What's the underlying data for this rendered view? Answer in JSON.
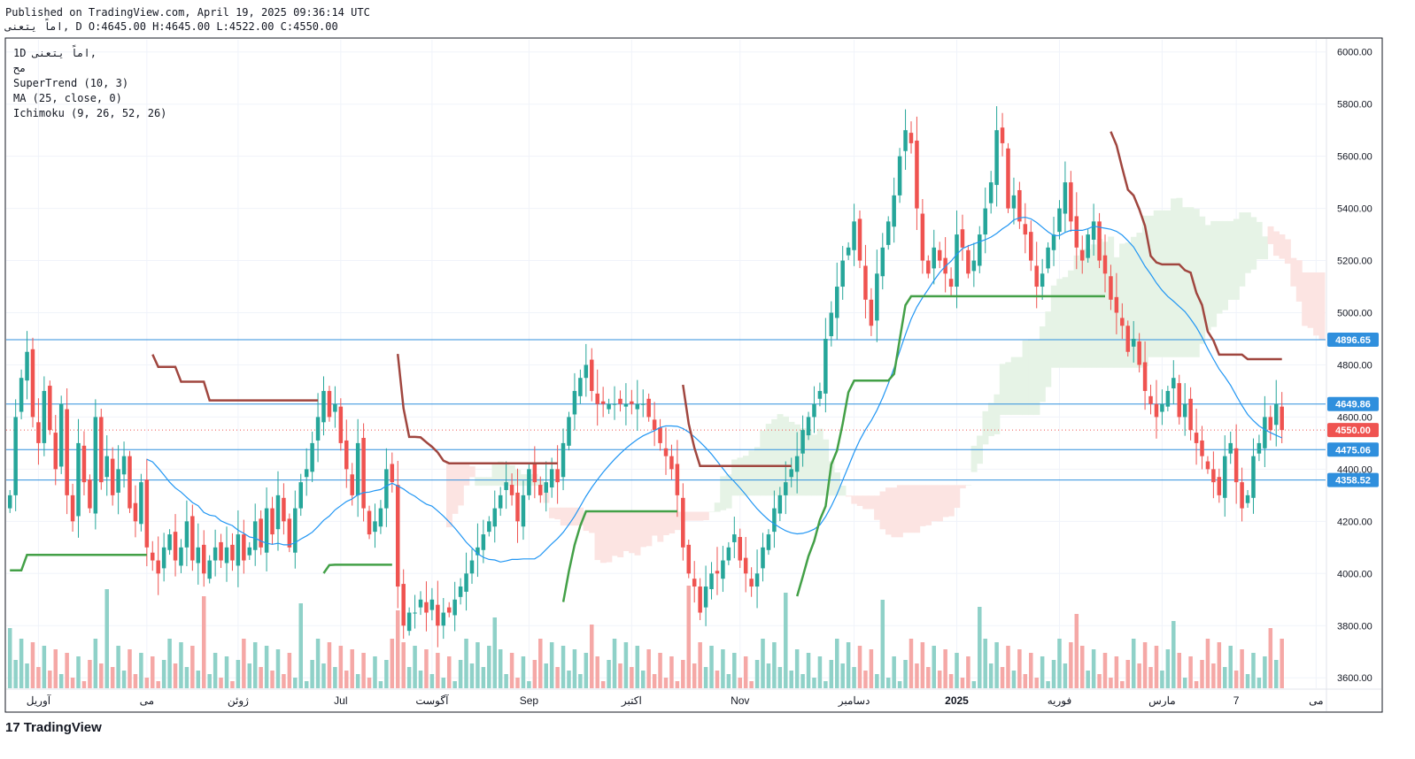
{
  "header": {
    "published": "Published on TradingView.com, April 19, 2025 09:36:14 UTC",
    "ohlc": "اماً  يتعنى, D O:4645.00 H:4645.00 L:4522.00 C:4550.00"
  },
  "legend": {
    "symbol": "1D  اماً  يتعنى,",
    "line2": "مح",
    "supertrend": "SuperTrend (10, 3)",
    "ma": "MA (25, close, 0)",
    "ichimoku": "Ichimoku (9, 26, 52, 26)"
  },
  "footer": {
    "logo_text": "TradingView",
    "logo_mark": "17"
  },
  "colors": {
    "up": "#26a69a",
    "down": "#ef5350",
    "up_volume": "#8fd1c8",
    "down_volume": "#f5a8a6",
    "supertrend_up": "#43a047",
    "supertrend_down": "#a0463f",
    "ma": "#2196f3",
    "cloud_bull": "#e6f3e6",
    "cloud_bear": "#fce4e2",
    "hline": "#2f8fdd",
    "last_price": "#ef5350"
  },
  "chart_data": {
    "type": "candlestick",
    "ylim": [
      3560,
      6050
    ],
    "y_ticks": [
      "6000.00",
      "5800.00",
      "5600.00",
      "5400.00",
      "5200.00",
      "5000.00",
      "4800.00",
      "4600.00",
      "4400.00",
      "4200.00",
      "4000.00",
      "3800.00",
      "3600.00"
    ],
    "y_tick_values": [
      6000,
      5800,
      5600,
      5400,
      5200,
      5000,
      4800,
      4600,
      4400,
      4200,
      4000,
      3800,
      3600
    ],
    "x_labels": [
      "آوریل",
      "می",
      "ژوئن",
      "Jul",
      "آگوست",
      "Sep",
      "اکتبر",
      "Nov",
      "دسامبر",
      "2025",
      "فوریه",
      "مارس",
      "7",
      "می"
    ],
    "x_label_positions": [
      5,
      24,
      40,
      58,
      74,
      91,
      109,
      128,
      148,
      166,
      184,
      202,
      215,
      229
    ],
    "bars_total": 231,
    "horizontal_levels": [
      {
        "value": 4896.65,
        "label": "4896.65"
      },
      {
        "value": 4649.86,
        "label": "4649.86"
      },
      {
        "value": 4475.06,
        "label": "4475.06"
      },
      {
        "value": 4358.52,
        "label": "4358.52"
      }
    ],
    "last_price": {
      "value": 4550,
      "label": "4550.00"
    },
    "closes": [
      4300,
      4600,
      4750,
      4850,
      4600,
      4500,
      4700,
      4550,
      4400,
      4650,
      4300,
      4200,
      4500,
      4350,
      4250,
      4600,
      4350,
      4450,
      4300,
      4400,
      4450,
      4250,
      4200,
      4350,
      4100,
      4050,
      4000,
      4100,
      4150,
      4050,
      4100,
      4200,
      4050,
      4100,
      4000,
      4050,
      4100,
      4050,
      4100,
      4050,
      4150,
      4050,
      4100,
      4200,
      4100,
      4250,
      4150,
      4300,
      4200,
      4100,
      4250,
      4350,
      4400,
      4500,
      4600,
      4700,
      4600,
      4650,
      4500,
      4400,
      4300,
      4500,
      4250,
      4150,
      4200,
      4250,
      4400,
      4350,
      3950,
      3800,
      3850,
      3850,
      3900,
      3850,
      3900,
      3800,
      3850,
      3850,
      3900,
      3950,
      4000,
      4050,
      4100,
      4150,
      4200,
      4250,
      4300,
      4350,
      4300,
      4200,
      4300,
      4400,
      4350,
      4300,
      4350,
      4400,
      4350,
      4500,
      4600,
      4700,
      4750,
      4800,
      4700,
      4650,
      4650,
      4650,
      4650,
      4650,
      4650,
      4650,
      4650,
      4650,
      4600,
      4550,
      4500,
      4450,
      4400,
      4300,
      4100,
      4000,
      3950,
      3850,
      3950,
      4000,
      4000,
      4050,
      4100,
      4150,
      4050,
      4000,
      3950,
      4000,
      4100,
      4150,
      4250,
      4300,
      4350,
      4400,
      4450,
      4550,
      4600,
      4650,
      4700,
      4900,
      5000,
      5100,
      5200,
      5250,
      5350,
      5200,
      5050,
      4950,
      5150,
      5250,
      5350,
      5450,
      5600,
      5700,
      5650,
      5400,
      5200,
      5150,
      5250,
      5200,
      5150,
      5100,
      5300,
      5250,
      5150,
      5200,
      5300,
      5400,
      5500,
      5700,
      5650,
      5400,
      5450,
      5350,
      5300,
      5200,
      5100,
      5150,
      5250,
      5300,
      5400,
      5500,
      5350,
      5250,
      5200,
      5300,
      5350,
      5200,
      5150,
      5050,
      5000,
      4950,
      4850,
      4900,
      4800,
      4700,
      4650,
      4600,
      4650,
      4700,
      4750,
      4600,
      4650,
      4550,
      4500,
      4450,
      4400,
      4350,
      4300,
      4450,
      4500,
      4350,
      4250,
      4300,
      4450,
      4500,
      4600,
      4550,
      4650,
      4550
    ],
    "series": [
      {
        "name": "SuperTrend (10, 3)"
      },
      {
        "name": "MA (25, close, 0)"
      },
      {
        "name": "Ichimoku (9, 26, 52, 26)"
      }
    ]
  }
}
